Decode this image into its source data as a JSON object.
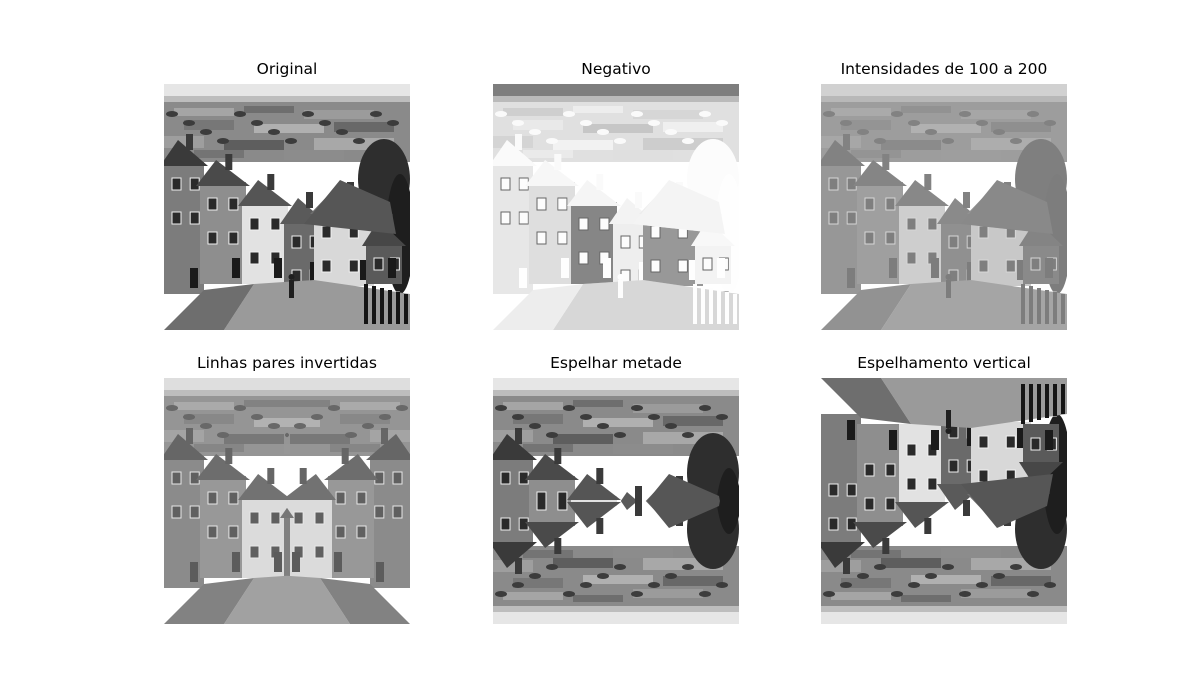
{
  "panels": [
    {
      "title": "Original",
      "variant": "original"
    },
    {
      "title": "Negativo",
      "variant": "negative"
    },
    {
      "title": "Intensidades de 100 a 200",
      "variant": "range"
    },
    {
      "title": "Linhas pares invertidas",
      "variant": "mirrored-rows"
    },
    {
      "title": "Espelhar metade",
      "variant": "mirror-half"
    },
    {
      "title": "Espelhamento vertical",
      "variant": "vertical-flip"
    }
  ]
}
